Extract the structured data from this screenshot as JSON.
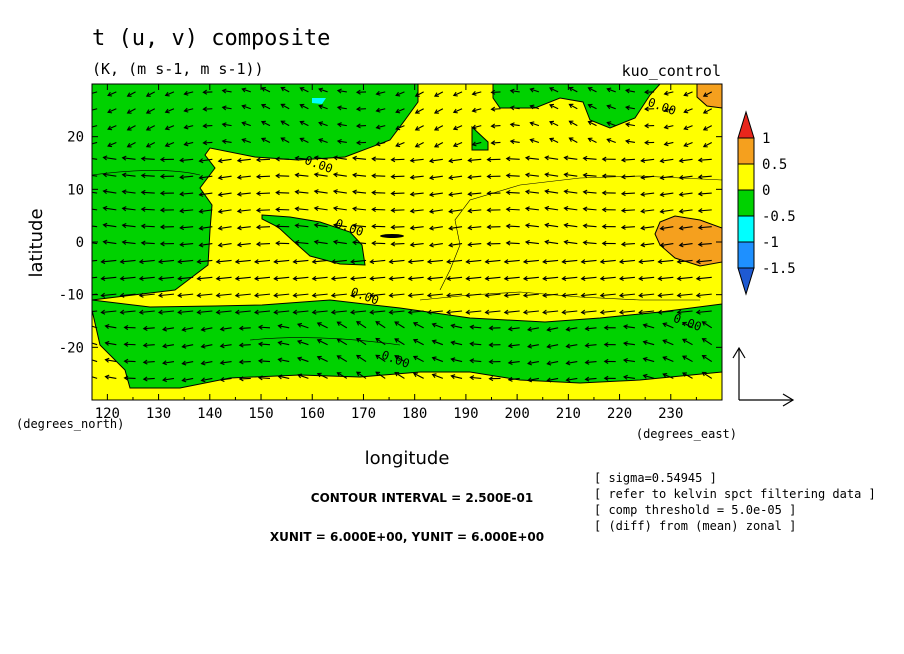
{
  "header": {
    "title": "t (u, v) composite",
    "units": "(K, (m s-1, m s-1))",
    "experiment": "kuo_control"
  },
  "chart_data": {
    "type": "heatmap",
    "variable": "t",
    "vector_components": [
      "u",
      "v"
    ],
    "xlabel": "longitude",
    "ylabel": "latitude",
    "x_units": "(degrees_east)",
    "y_units": "(degrees_north)",
    "xlim": [
      117,
      240
    ],
    "ylim": [
      -30,
      30
    ],
    "x_ticks": [
      "120",
      "130",
      "140",
      "150",
      "160",
      "170",
      "180",
      "190",
      "200",
      "210",
      "220",
      "230"
    ],
    "y_ticks": [
      "20",
      "10",
      "0",
      "-10",
      "-20"
    ],
    "legend": {
      "placement": "right",
      "levels": [
        "1",
        "0.5",
        "0",
        "-0.5",
        "-1",
        "-1.5"
      ],
      "colors": [
        "#e8261c",
        "#f5a01e",
        "#ffff00",
        "#00d200",
        "#00ffff",
        "#1e90ff",
        "#1e5ad2"
      ]
    },
    "contour_labels": [
      {
        "text": "0.00",
        "lon": 161,
        "lat": 14
      },
      {
        "text": "0.00",
        "lon": 167,
        "lat": 2
      },
      {
        "text": "0.00",
        "lon": 170,
        "lat": -11
      },
      {
        "text": "0.00",
        "lon": 176,
        "lat": -23
      },
      {
        "text": "0.00",
        "lon": 228,
        "lat": 25
      },
      {
        "text": "0.00",
        "lon": 233,
        "lat": -16
      }
    ],
    "regions": [
      {
        "value": "0 to 0.5",
        "color": "#ffff00",
        "description": "central warm band"
      },
      {
        "value": "-0.5 to 0",
        "color": "#00d200",
        "description": "west and north cool region"
      },
      {
        "value": "-0.5 to 0",
        "color": "#00d200",
        "description": "southern cool band"
      },
      {
        "value": "0.5 to 1",
        "color": "#f5a01e",
        "description": "eastern equatorial patch"
      },
      {
        "value": "0.5 to 1",
        "color": "#f5a01e",
        "description": "north-east corner patch"
      },
      {
        "value": "-1 to -0.5",
        "color": "#00ffff",
        "description": "small patch near 162E 28N"
      }
    ]
  },
  "footer": {
    "contour_interval": "CONTOUR INTERVAL = 2.500E-01",
    "units_line": "XUNIT = 6.000E+00, YUNIT = 6.000E+00",
    "info": [
      "[ sigma=0.54945 ]",
      "[ refer to kelvin spct filtering data ]",
      "[ comp threshold = 5.0e-05 ]",
      "[ (diff) from (mean) zonal ]"
    ]
  }
}
